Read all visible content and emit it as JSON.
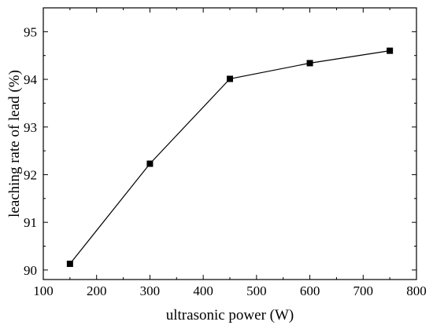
{
  "chart_data": {
    "type": "line",
    "title": "",
    "xlabel": "ultrasonic power (W)",
    "ylabel": "leaching rate of lead (%)",
    "xlim": [
      100,
      800
    ],
    "ylim": [
      89.8,
      95.5
    ],
    "xticks": [
      100,
      200,
      300,
      400,
      500,
      600,
      700,
      800
    ],
    "yticks": [
      90,
      91,
      92,
      93,
      94,
      95
    ],
    "xtick_labels": [
      "100",
      "200",
      "300",
      "400",
      "500",
      "600",
      "700",
      "800"
    ],
    "ytick_labels": [
      "90",
      "91",
      "92",
      "93",
      "94",
      "95"
    ],
    "grid": false,
    "legend": "none",
    "series": [
      {
        "marker": "square",
        "color": "#000000",
        "x": [
          150,
          300,
          450,
          600,
          750
        ],
        "y": [
          90.13,
          92.23,
          94.01,
          94.34,
          94.6
        ]
      }
    ]
  }
}
